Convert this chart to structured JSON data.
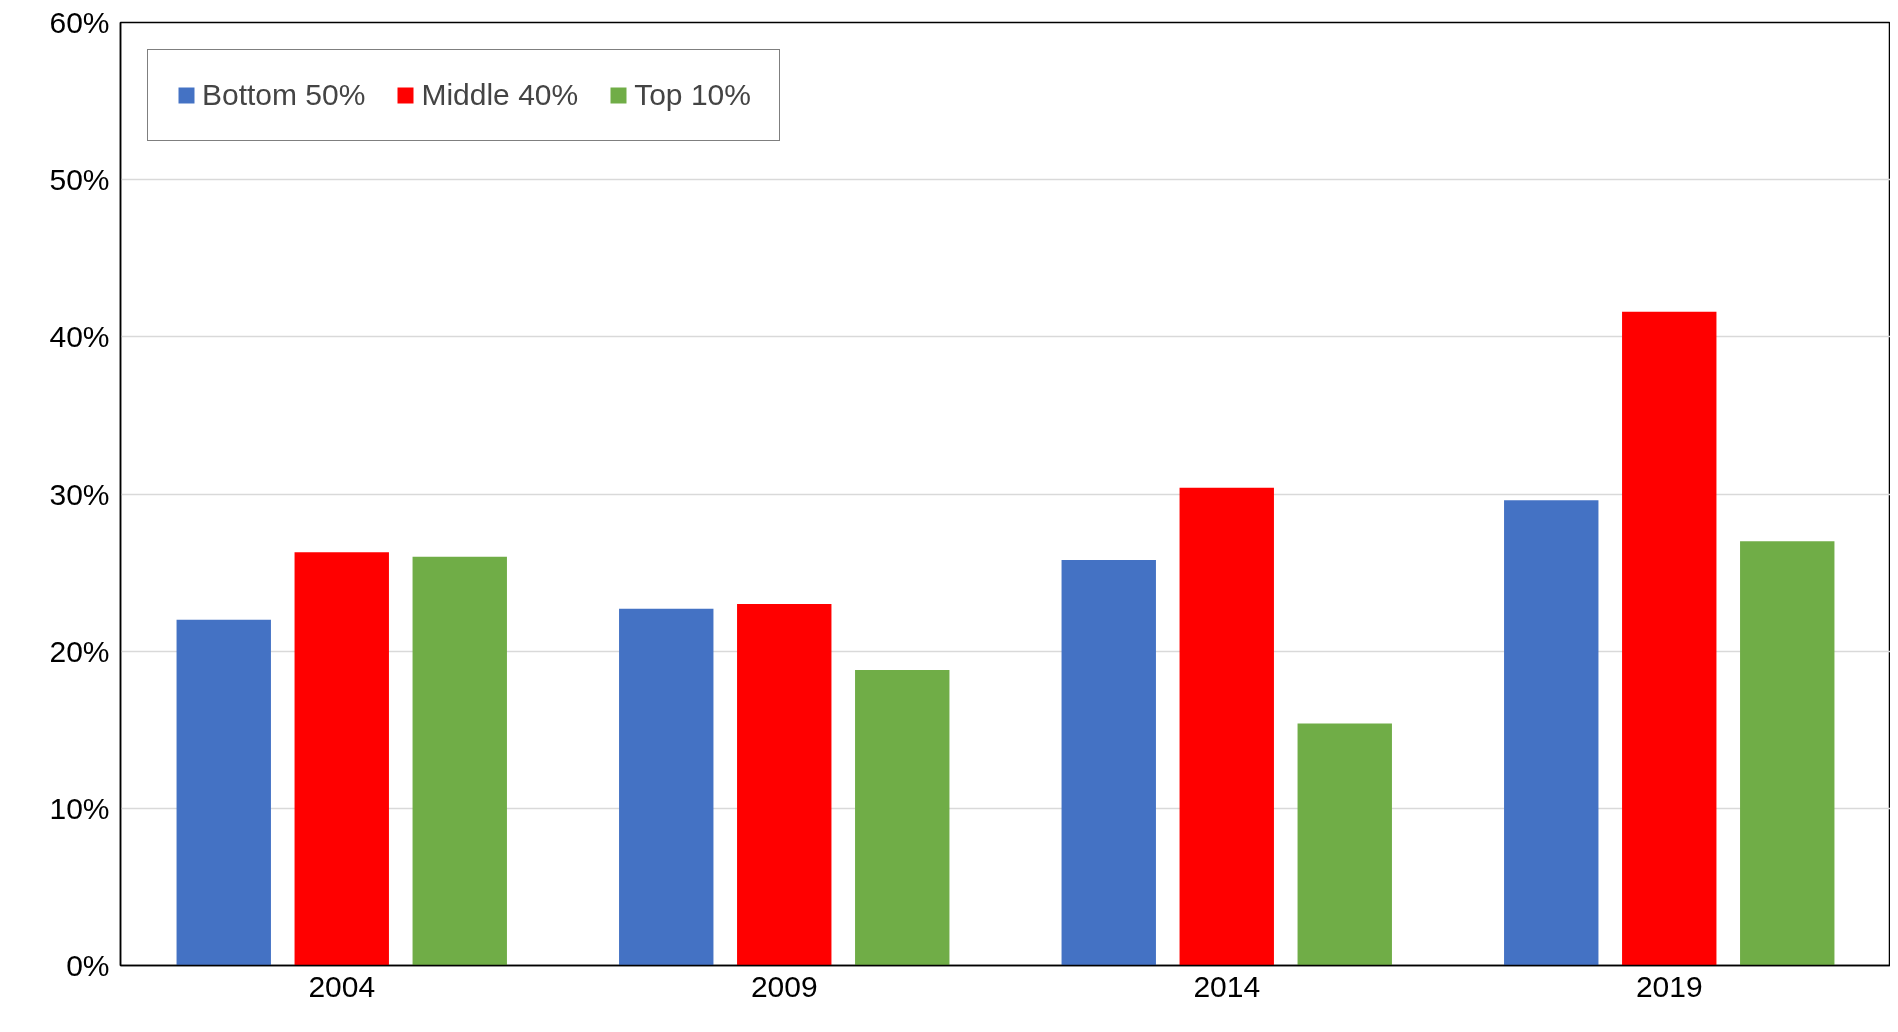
{
  "chart_data": {
    "type": "bar",
    "categories": [
      "2004",
      "2009",
      "2014",
      "2019"
    ],
    "series": [
      {
        "name": "Bottom 50%",
        "color": "#4472c4",
        "values": [
          22.0,
          22.7,
          25.8,
          29.6
        ]
      },
      {
        "name": "Middle 40%",
        "color": "#ff0000",
        "values": [
          26.3,
          23.0,
          30.4,
          41.6
        ]
      },
      {
        "name": "Top 10%",
        "color": "#70ad47",
        "values": [
          26.0,
          18.8,
          15.4,
          27.0
        ]
      }
    ],
    "ylim": [
      0,
      60
    ],
    "yticks": [
      {
        "value": 0,
        "label": "0%"
      },
      {
        "value": 10,
        "label": "10%"
      },
      {
        "value": 20,
        "label": "20%"
      },
      {
        "value": 30,
        "label": "30%"
      },
      {
        "value": 40,
        "label": "40%"
      },
      {
        "value": 50,
        "label": "50%"
      },
      {
        "value": 60,
        "label": "60%"
      }
    ],
    "grid": "y",
    "legend": "top left"
  }
}
